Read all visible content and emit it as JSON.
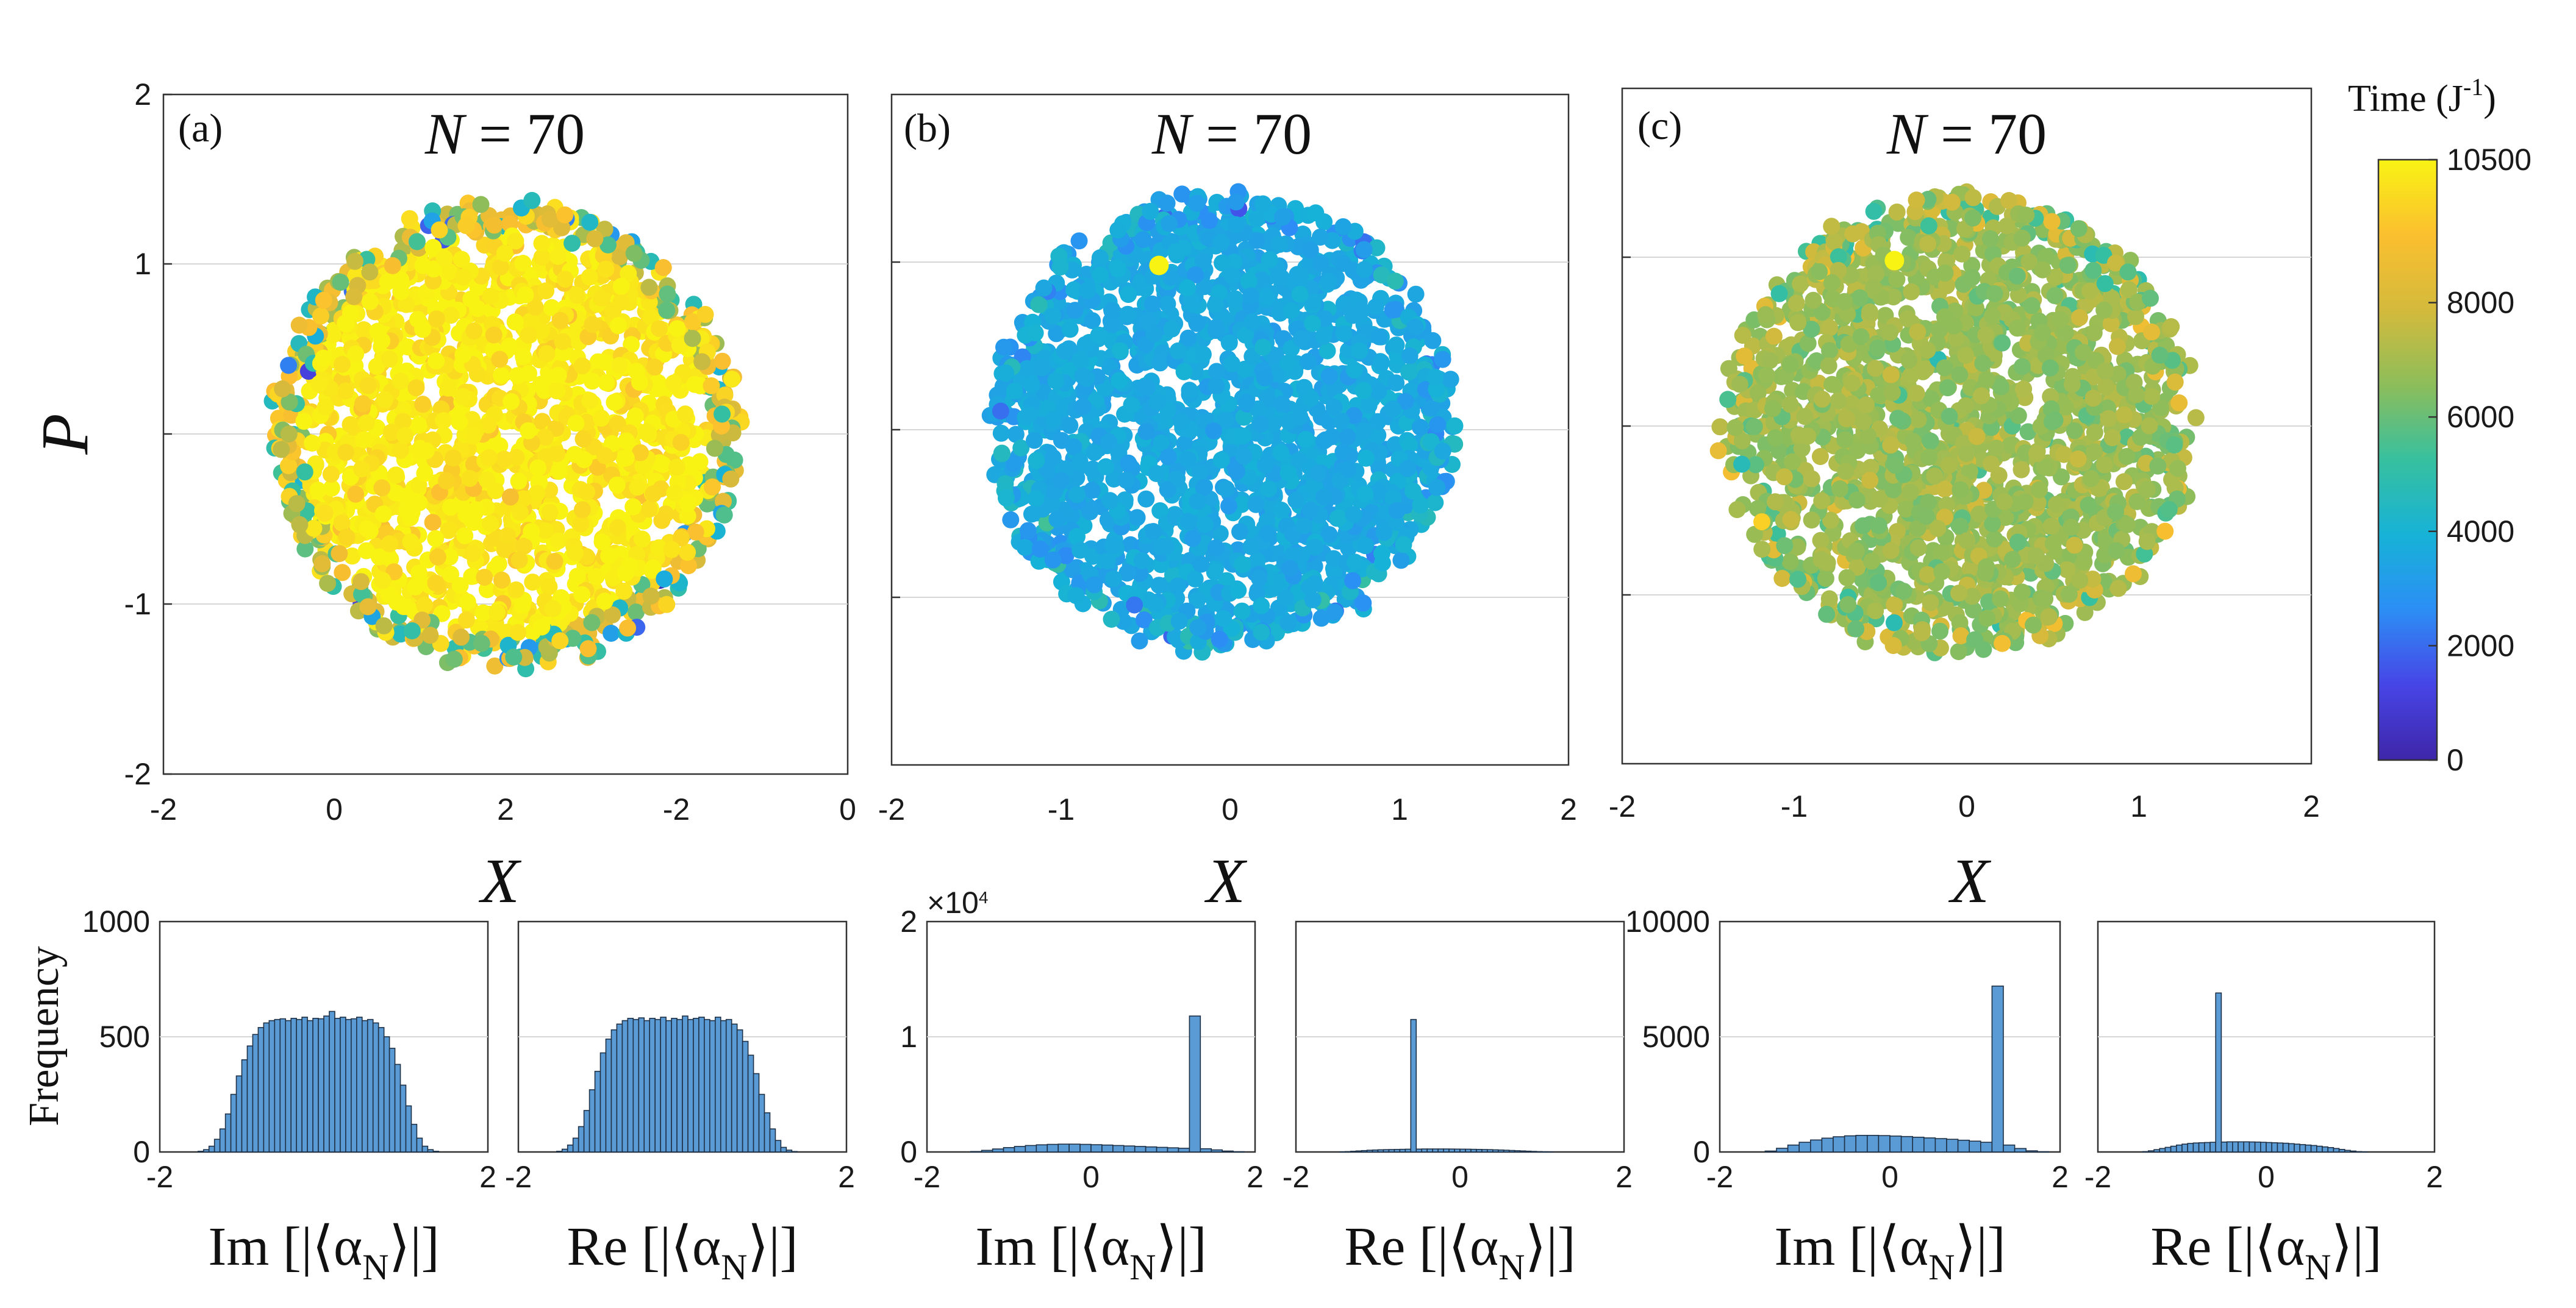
{
  "colorbar": {
    "label": "Time (J",
    "label_sup": "-1",
    "label_close": ")",
    "min": 0,
    "max": 10500,
    "ticks": [
      "0",
      "2000",
      "4000",
      "6000",
      "8000",
      "10500"
    ],
    "tick_values": [
      0,
      2000,
      4000,
      6000,
      8000,
      10500
    ]
  },
  "colors": {
    "stops": [
      "#3e26a8",
      "#4745e6",
      "#2c8ef5",
      "#17b2d7",
      "#37c09f",
      "#8dbd5a",
      "#d4ba3c",
      "#fbbf2f",
      "#f9f314"
    ],
    "hist_fill": "#5b9bd5",
    "hist_edge": "#1f3147"
  },
  "chart_data": [
    {
      "id": "a",
      "type": "scatter",
      "panel_label": "(a)",
      "title": "N = 70",
      "title_var": "N",
      "title_eq": " = 70",
      "ylabel": "P",
      "xlabel": "",
      "xlim": [
        -2,
        2
      ],
      "ylim": [
        -2,
        2
      ],
      "x_ticks": [
        "-2",
        "0",
        "2",
        "-2",
        "0"
      ],
      "y_ticks": [
        "2",
        "1",
        "",
        "-1",
        "-2"
      ],
      "cloud": {
        "center": [
          0,
          0
        ],
        "radius": 1.35,
        "time_mean": 10300,
        "time_spread": 700,
        "edge_time_spread": 3500
      },
      "highlight": null
    },
    {
      "id": "b",
      "type": "scatter",
      "panel_label": "(b)",
      "title": "N = 70",
      "title_var": "N",
      "title_eq": " = 70",
      "ylabel": "",
      "xlabel": "X",
      "xlim": [
        -2,
        2
      ],
      "ylim": [
        -2,
        2
      ],
      "x_ticks": [
        "-2",
        "-1",
        "0",
        "1",
        "2"
      ],
      "y_ticks": [],
      "cloud": {
        "center": [
          -0.05,
          0.05
        ],
        "radius": 1.35,
        "time_mean": 3600,
        "time_spread": 350,
        "edge_time_spread": 600
      },
      "highlight": {
        "x": -0.42,
        "y": 0.98,
        "time": 10500
      }
    },
    {
      "id": "c",
      "type": "scatter",
      "panel_label": "(c)",
      "title": "N = 70",
      "title_var": "N",
      "title_eq": " = 70",
      "ylabel": "",
      "xlabel": "X",
      "xlim": [
        -2,
        2
      ],
      "ylim": [
        -2,
        2
      ],
      "x_ticks": [
        "-2",
        "-1",
        "0",
        "1",
        "2"
      ],
      "y_ticks": [],
      "cloud": {
        "center": [
          -0.05,
          0.0
        ],
        "radius": 1.35,
        "time_mean": 6800,
        "time_spread": 700,
        "edge_time_spread": 900
      },
      "highlight": {
        "x": -0.42,
        "y": 0.98,
        "time": 10500
      }
    },
    {
      "id": "a-im",
      "type": "bar",
      "group": "a",
      "ylabel": "Frequency",
      "xlabel": "Im [|⟨α",
      "xlabel_sub": "N",
      "xlabel_close": "⟩|]",
      "xlim": [
        -2,
        2
      ],
      "ylim": [
        0,
        1000
      ],
      "x_ticks": [
        "-2",
        "2"
      ],
      "y_ticks": [
        "0",
        "500",
        "1000"
      ],
      "exponent": "",
      "bins": 60,
      "values": [
        0,
        0,
        0,
        0,
        0,
        0,
        0,
        3,
        10,
        25,
        55,
        100,
        165,
        250,
        330,
        400,
        460,
        510,
        540,
        560,
        570,
        575,
        578,
        570,
        580,
        575,
        585,
        570,
        580,
        578,
        590,
        610,
        580,
        585,
        575,
        578,
        585,
        570,
        575,
        560,
        540,
        500,
        450,
        380,
        290,
        200,
        120,
        60,
        25,
        10,
        3,
        0,
        0,
        0,
        0,
        0,
        0,
        0,
        0,
        0
      ]
    },
    {
      "id": "a-re",
      "type": "bar",
      "group": "a",
      "ylabel": "",
      "xlabel": "Re [|⟨α",
      "xlabel_sub": "N",
      "xlabel_close": "⟩|]",
      "xlim": [
        -2,
        2
      ],
      "ylim": [
        0,
        1000
      ],
      "x_ticks": [
        "-2",
        "2"
      ],
      "y_ticks": [],
      "exponent": "",
      "bins": 60,
      "values": [
        0,
        0,
        0,
        0,
        0,
        0,
        0,
        3,
        12,
        30,
        60,
        110,
        180,
        270,
        350,
        430,
        490,
        530,
        555,
        570,
        580,
        575,
        582,
        570,
        580,
        575,
        585,
        570,
        580,
        575,
        590,
        575,
        580,
        585,
        575,
        570,
        585,
        570,
        575,
        555,
        530,
        480,
        420,
        340,
        250,
        170,
        100,
        50,
        20,
        8,
        2,
        0,
        0,
        0,
        0,
        0,
        0,
        0,
        0,
        0
      ]
    },
    {
      "id": "b-im",
      "type": "bar",
      "group": "b",
      "ylabel": "",
      "xlabel": "Im [|⟨α",
      "xlabel_sub": "N",
      "xlabel_close": "⟩|]",
      "xlim": [
        -2,
        2
      ],
      "ylim": [
        0,
        20000
      ],
      "x_ticks": [
        "-2",
        "0",
        "2"
      ],
      "y_ticks": [
        "0",
        "1",
        "2"
      ],
      "exponent": "×10",
      "exponent_power": "4",
      "bins": 30,
      "values": [
        0,
        0,
        0,
        0,
        40,
        140,
        260,
        380,
        480,
        560,
        620,
        660,
        680,
        680,
        660,
        630,
        600,
        560,
        520,
        480,
        440,
        400,
        360,
        320,
        11800,
        280,
        180,
        80,
        20,
        0
      ]
    },
    {
      "id": "b-re",
      "type": "bar",
      "group": "b",
      "ylabel": "",
      "xlabel": "Re [|⟨α",
      "xlabel_sub": "N",
      "xlabel_close": "⟩|]",
      "xlim": [
        -2,
        2
      ],
      "ylim": [
        0,
        20000
      ],
      "x_ticks": [
        "-2",
        "0",
        "2"
      ],
      "y_ticks": [],
      "exponent": "",
      "bins": 60,
      "values": [
        0,
        0,
        0,
        0,
        0,
        0,
        0,
        0,
        10,
        30,
        60,
        90,
        120,
        150,
        170,
        190,
        200,
        210,
        220,
        230,
        240,
        11500,
        250,
        260,
        260,
        260,
        260,
        260,
        255,
        250,
        245,
        240,
        230,
        220,
        210,
        200,
        185,
        170,
        150,
        130,
        110,
        90,
        70,
        50,
        30,
        15,
        5,
        0,
        0,
        0,
        0,
        0,
        0,
        0,
        0,
        0,
        0,
        0,
        0,
        0
      ]
    },
    {
      "id": "c-im",
      "type": "bar",
      "group": "c",
      "ylabel": "",
      "xlabel": "Im [|⟨α",
      "xlabel_sub": "N",
      "xlabel_close": "⟩|]",
      "xlim": [
        -2,
        2
      ],
      "ylim": [
        0,
        10000
      ],
      "x_ticks": [
        "-2",
        "0",
        "2"
      ],
      "y_ticks": [
        "0",
        "5000",
        "10000"
      ],
      "exponent": "",
      "bins": 30,
      "values": [
        0,
        0,
        0,
        0,
        40,
        160,
        300,
        420,
        520,
        600,
        660,
        700,
        720,
        720,
        710,
        690,
        670,
        640,
        610,
        580,
        550,
        510,
        470,
        420,
        7200,
        300,
        150,
        50,
        10,
        0
      ]
    },
    {
      "id": "c-re",
      "type": "bar",
      "group": "c",
      "ylabel": "",
      "xlabel": "Re [|⟨α",
      "xlabel_sub": "N",
      "xlabel_close": "⟩|]",
      "xlim": [
        -2,
        2
      ],
      "ylim": [
        0,
        10000
      ],
      "x_ticks": [
        "-2",
        "0",
        "2"
      ],
      "y_ticks": [],
      "exponent": "",
      "bins": 60,
      "values": [
        0,
        0,
        0,
        0,
        0,
        0,
        0,
        0,
        15,
        50,
        100,
        150,
        200,
        250,
        300,
        340,
        370,
        390,
        400,
        410,
        420,
        6900,
        430,
        440,
        440,
        440,
        440,
        435,
        430,
        420,
        410,
        400,
        390,
        380,
        360,
        340,
        320,
        300,
        280,
        250,
        220,
        190,
        150,
        110,
        70,
        40,
        15,
        5,
        0,
        0,
        0,
        0,
        0,
        0,
        0,
        0,
        0,
        0,
        0,
        0
      ]
    }
  ]
}
